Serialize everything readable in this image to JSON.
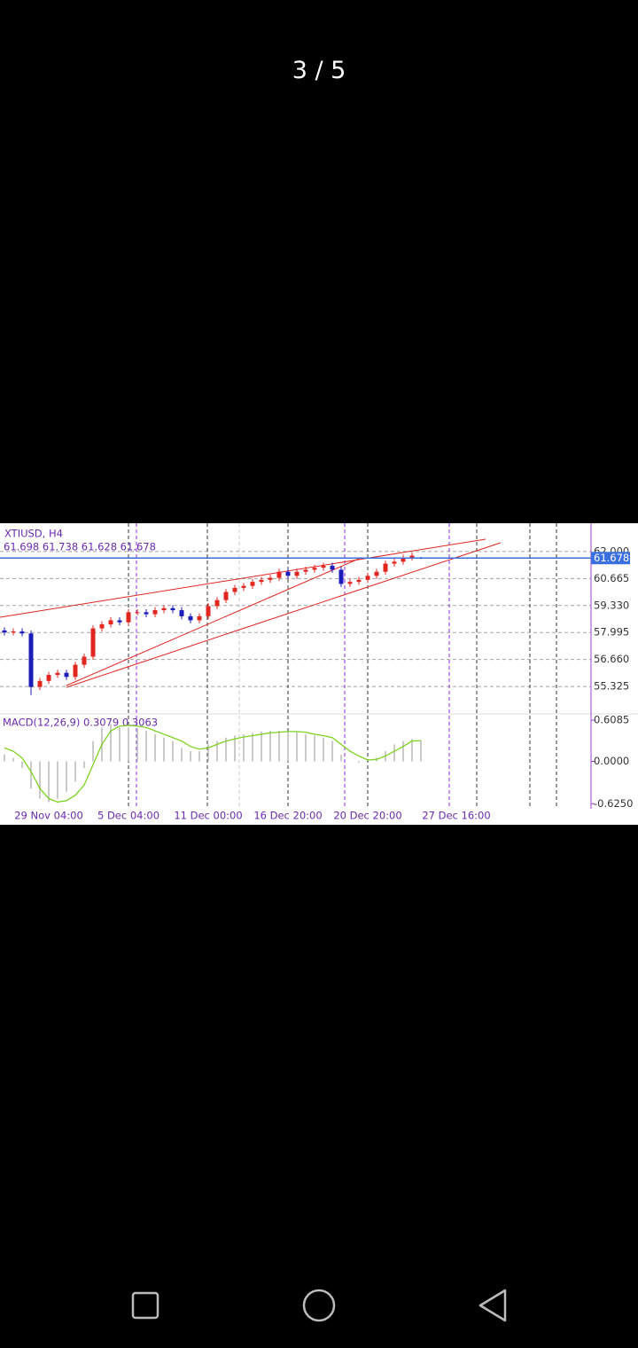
{
  "viewer": {
    "counter": "3 / 5"
  },
  "chart_data": {
    "type": "candlestick",
    "symbol": "XTIUSD, H4",
    "ohlc_label": "61.698 61.738 61.628 61.678",
    "categories": [
      null,
      null,
      null,
      null,
      null,
      "29 Nov 04:00",
      null,
      null,
      null,
      null,
      null,
      null,
      null,
      null,
      "5 Dec 04:00",
      null,
      null,
      null,
      null,
      null,
      null,
      null,
      null,
      "11 Dec 00:00",
      null,
      null,
      null,
      null,
      null,
      null,
      null,
      null,
      "16 Dec 20:00",
      null,
      null,
      null,
      null,
      null,
      null,
      null,
      null,
      "20 Dec 20:00",
      null,
      null,
      null,
      null,
      null,
      null,
      null,
      null,
      null,
      "27 Dec 16:00",
      null,
      null,
      null,
      null,
      null,
      null,
      null,
      null,
      null,
      null,
      null,
      null,
      null,
      null
    ],
    "open": [
      58.1,
      58.0,
      58.05,
      57.95,
      55.3,
      55.6,
      55.9,
      56.0,
      55.8,
      56.4,
      56.8,
      58.2,
      58.4,
      58.6,
      58.5,
      59.0,
      59.0,
      58.9,
      59.1,
      59.2,
      59.1,
      58.8,
      58.6,
      58.8,
      59.3,
      59.6,
      60.0,
      60.2,
      60.3,
      60.5,
      60.6,
      60.7,
      61.0,
      60.8,
      61.0,
      61.1,
      61.2,
      61.3,
      61.1,
      60.4,
      60.5,
      60.6,
      60.8,
      61.0,
      61.4,
      61.5,
      61.7,
      61.698,
      null,
      null,
      null,
      null,
      null,
      null,
      null,
      null,
      null,
      null,
      null,
      null,
      null,
      null,
      null,
      null,
      null,
      null
    ],
    "high": [
      58.25,
      58.2,
      58.2,
      58.1,
      55.75,
      56.05,
      56.15,
      56.15,
      56.55,
      56.95,
      58.35,
      58.55,
      58.75,
      58.75,
      59.15,
      59.15,
      59.15,
      59.25,
      59.35,
      59.35,
      59.25,
      58.95,
      58.95,
      59.45,
      59.75,
      60.15,
      60.35,
      60.45,
      60.65,
      60.75,
      60.85,
      61.15,
      61.15,
      61.15,
      61.25,
      61.35,
      61.45,
      61.45,
      61.25,
      60.65,
      60.75,
      60.95,
      61.15,
      61.55,
      61.65,
      61.85,
      61.95,
      61.738,
      null,
      null,
      null,
      null,
      null,
      null,
      null,
      null,
      null,
      null,
      null,
      null,
      null,
      null,
      null,
      null,
      null,
      null
    ],
    "low": [
      57.85,
      57.85,
      57.8,
      54.9,
      55.15,
      55.45,
      55.75,
      55.65,
      55.65,
      56.25,
      56.65,
      58.05,
      58.25,
      58.35,
      58.35,
      58.85,
      58.75,
      58.75,
      58.95,
      58.95,
      58.65,
      58.45,
      58.45,
      58.65,
      59.15,
      59.45,
      59.85,
      60.05,
      60.15,
      60.35,
      60.45,
      60.55,
      60.65,
      60.65,
      60.85,
      60.95,
      61.05,
      60.95,
      60.25,
      60.25,
      60.35,
      60.45,
      60.65,
      60.85,
      61.25,
      61.35,
      61.55,
      61.628,
      null,
      null,
      null,
      null,
      null,
      null,
      null,
      null,
      null,
      null,
      null,
      null,
      null,
      null,
      null,
      null,
      null,
      null
    ],
    "close": [
      58.0,
      58.05,
      57.95,
      55.3,
      55.6,
      55.9,
      56.0,
      55.8,
      56.4,
      56.8,
      58.2,
      58.4,
      58.6,
      58.5,
      59.0,
      59.0,
      58.9,
      59.1,
      59.2,
      59.1,
      58.8,
      58.6,
      58.8,
      59.3,
      59.6,
      60.0,
      60.2,
      60.3,
      60.5,
      60.6,
      60.7,
      61.0,
      60.8,
      61.0,
      61.1,
      61.2,
      61.3,
      61.1,
      60.4,
      60.5,
      60.6,
      60.8,
      61.0,
      61.4,
      61.5,
      61.7,
      61.8,
      61.678,
      null,
      null,
      null,
      null,
      null,
      null,
      null,
      null,
      null,
      null,
      null,
      null,
      null,
      null,
      null,
      null,
      null,
      null
    ],
    "up_color": "#e0261f",
    "down_color": "#1c1cb8",
    "last_price_color": "#3b6fe0",
    "ylim": [
      53.97,
      63.4
    ],
    "yticks": [
      {
        "value": 62,
        "label": "62.000"
      },
      60.665,
      {
        "value": 59.33,
        "label": "59.330"
      },
      57.995,
      {
        "value": 56.66,
        "label": "56.660"
      },
      55.325
    ],
    "macd": {
      "label": "MACD(12,26,9) 0.3079 0.3063",
      "signal_color": "#7ed321",
      "histogram_color": "#b8b8b8",
      "ylim": [
        -0.7,
        0.7
      ],
      "yticks": [
        0.6085,
        {
          "value": 0,
          "label": "0.0000"
        },
        {
          "value": -0.625,
          "label": "-0.6250"
        }
      ],
      "histogram": [
        0.1,
        0.05,
        -0.1,
        -0.4,
        -0.55,
        -0.6,
        -0.55,
        -0.45,
        -0.3,
        -0.1,
        0.3,
        0.5,
        0.55,
        0.5,
        0.5,
        0.48,
        0.45,
        0.4,
        0.35,
        0.3,
        0.2,
        0.15,
        0.15,
        0.25,
        0.3,
        0.35,
        0.38,
        0.4,
        0.42,
        0.44,
        0.45,
        0.45,
        0.44,
        0.43,
        0.4,
        0.38,
        0.35,
        0.3,
        0.1,
        0.0,
        -0.02,
        0.0,
        0.05,
        0.15,
        0.25,
        0.3,
        0.33,
        0.3079,
        null,
        null,
        null,
        null,
        null,
        null,
        null,
        null,
        null,
        null,
        null,
        null,
        null,
        null,
        null,
        null,
        null,
        null
      ],
      "signal": [
        0.2,
        0.15,
        0.05,
        -0.15,
        -0.4,
        -0.55,
        -0.6,
        -0.58,
        -0.5,
        -0.35,
        -0.05,
        0.25,
        0.45,
        0.52,
        0.53,
        0.52,
        0.5,
        0.45,
        0.4,
        0.35,
        0.3,
        0.22,
        0.18,
        0.2,
        0.25,
        0.3,
        0.33,
        0.36,
        0.38,
        0.4,
        0.42,
        0.43,
        0.44,
        0.44,
        0.43,
        0.4,
        0.38,
        0.35,
        0.25,
        0.15,
        0.08,
        0.02,
        0.03,
        0.08,
        0.15,
        0.22,
        0.3,
        0.3063,
        null,
        null,
        null,
        null,
        null,
        null,
        null,
        null,
        null,
        null,
        null,
        null,
        null,
        null,
        null,
        null,
        null,
        null
      ]
    }
  }
}
